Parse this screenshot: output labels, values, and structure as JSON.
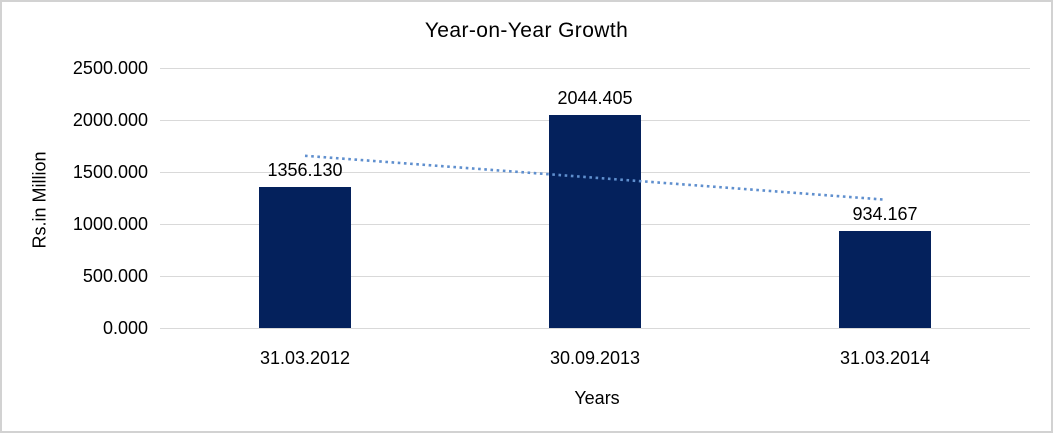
{
  "chart_data": {
    "type": "bar",
    "title": "Year-on-Year Growth",
    "xlabel": "Years",
    "ylabel": "Rs.in Million",
    "categories": [
      "31.03.2012",
      "30.09.2013",
      "31.03.2014"
    ],
    "values": [
      1356.13,
      2044.405,
      934.167
    ],
    "value_labels": [
      "1356.130",
      "2044.405",
      "934.167"
    ],
    "yticks": [
      {
        "label": "0.000",
        "value": 0
      },
      {
        "label": "500.000",
        "value": 500
      },
      {
        "label": "1000.000",
        "value": 1000
      },
      {
        "label": "1500.000",
        "value": 1500
      },
      {
        "label": "2000.000",
        "value": 2000
      },
      {
        "label": "2500.000",
        "value": 2500
      }
    ],
    "ylim": [
      0,
      2500
    ],
    "grid": true,
    "legend": false,
    "colors": {
      "bar": "#04215c",
      "gridline": "#d9d9d9",
      "trendline": "#5f8fce",
      "text": "#000000",
      "frame_border": "#d2d2d2",
      "background": "#ffffff"
    },
    "trendline": {
      "type": "linear",
      "style": "dotted"
    }
  }
}
